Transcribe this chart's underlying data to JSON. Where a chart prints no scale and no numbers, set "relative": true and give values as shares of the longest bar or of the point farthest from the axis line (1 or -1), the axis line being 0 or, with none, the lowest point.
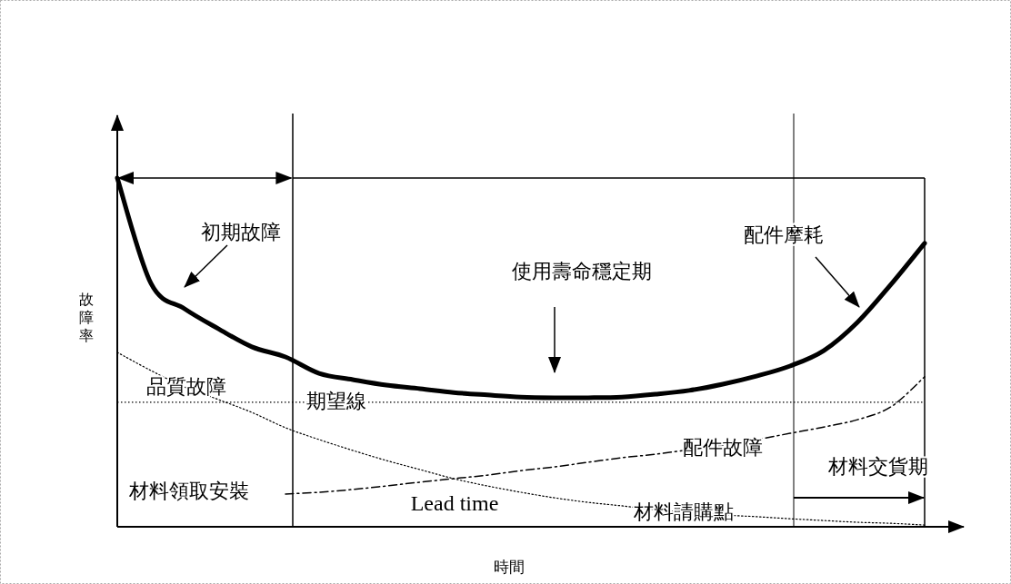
{
  "chart_data": {
    "type": "line",
    "relative": true,
    "xlabel": "時間",
    "ylabel": "故障率",
    "categories": [
      null,
      null,
      null,
      null,
      null,
      null,
      null,
      null,
      null,
      null,
      null,
      null,
      null,
      null,
      null,
      null,
      null,
      null,
      null,
      null,
      null,
      null,
      null,
      null,
      null
    ],
    "series": [
      {
        "color": "#000000",
        "line_style": "solid",
        "values": [
          1.0,
          0.698,
          0.625,
          0.568,
          0.516,
          0.487,
          0.44,
          0.422,
          0.406,
          0.396,
          0.385,
          0.378,
          0.372,
          0.37,
          0.37,
          0.372,
          0.38,
          0.391,
          0.409,
          0.432,
          0.461,
          0.505,
          0.586,
          0.695,
          0.813
        ]
      },
      {
        "name": "品質故障",
        "color": "#000000",
        "line_style": "dotted",
        "values": [
          0.5,
          0.448,
          0.401,
          0.365,
          0.328,
          0.284,
          0.25,
          0.219,
          0.19,
          0.164,
          0.138,
          0.117,
          0.099,
          0.083,
          0.07,
          0.06,
          0.049,
          0.042,
          0.034,
          0.029,
          0.023,
          0.018,
          0.013,
          0.01,
          0.005
        ]
      },
      {
        "name": "配件故障",
        "color": "#000000",
        "line_style": "dashdot",
        "values": [
          null,
          null,
          null,
          null,
          null,
          0.094,
          0.099,
          0.107,
          0.117,
          0.128,
          0.138,
          0.148,
          0.161,
          0.172,
          0.185,
          0.198,
          0.208,
          0.221,
          0.234,
          0.25,
          0.268,
          0.286,
          0.307,
          0.344,
          0.43
        ]
      }
    ],
    "ref_lines": [
      {
        "axis": "y",
        "value": 0.357,
        "label": "期望線",
        "line_style": "dotted"
      }
    ],
    "annotations": [
      "初期故障",
      "使用壽命穩定期",
      "配件摩耗",
      "材料領取安裝",
      "Lead time",
      "材料請購點",
      "材料交貨期"
    ]
  }
}
